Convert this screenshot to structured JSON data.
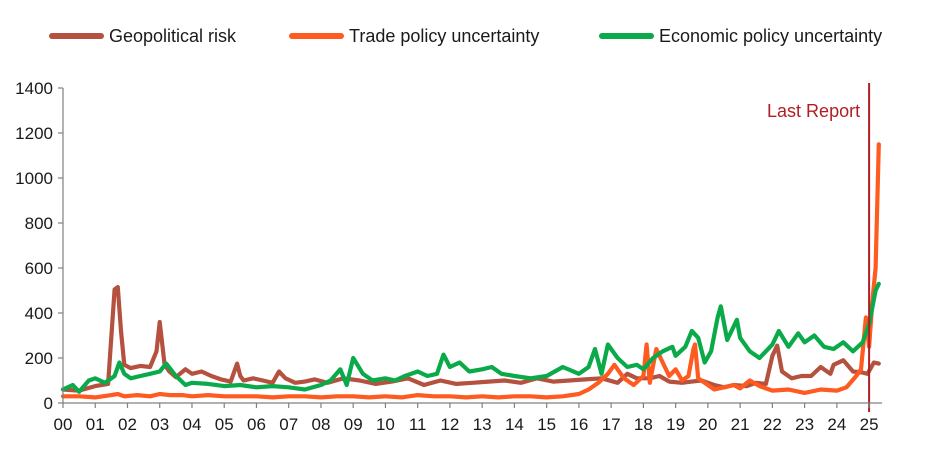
{
  "chart_data": {
    "type": "line",
    "x_tick_labels": [
      "00",
      "01",
      "02",
      "03",
      "04",
      "05",
      "06",
      "07",
      "08",
      "09",
      "10",
      "11",
      "12",
      "13",
      "14",
      "15",
      "16",
      "17",
      "18",
      "19",
      "20",
      "21",
      "22",
      "23",
      "24",
      "25"
    ],
    "y_tick_labels": [
      "0",
      "200",
      "400",
      "600",
      "800",
      "1000",
      "1200",
      "1400"
    ],
    "ylim": [
      0,
      1400
    ],
    "xlim": [
      2000.0,
      2025.4
    ],
    "grid": false,
    "legend_position": "top",
    "annotation": {
      "text": "Last Report",
      "x": 2025.0
    },
    "colors": {
      "geopolitical": "#b5513f",
      "trade": "#ff5a1f",
      "economic": "#0aaa4a",
      "annotation": "#b01e23",
      "axis": "#808080"
    },
    "series": [
      {
        "name": "Geopolitical risk",
        "key": "geopolitical",
        "x": [
          2000.0,
          2000.5,
          2001.0,
          2001.4,
          2001.6,
          2001.7,
          2001.8,
          2001.9,
          2002.1,
          2002.4,
          2002.7,
          2002.9,
          2003.0,
          2003.15,
          2003.3,
          2003.5,
          2003.8,
          2004.0,
          2004.3,
          2004.6,
          2004.9,
          2005.2,
          2005.4,
          2005.5,
          2005.6,
          2005.9,
          2006.2,
          2006.5,
          2006.7,
          2006.9,
          2007.2,
          2007.5,
          2007.8,
          2008.2,
          2008.7,
          2009.2,
          2009.7,
          2010.2,
          2010.7,
          2011.2,
          2011.7,
          2012.2,
          2012.7,
          2013.2,
          2013.7,
          2014.2,
          2014.7,
          2015.2,
          2015.7,
          2016.2,
          2016.7,
          2017.2,
          2017.5,
          2017.8,
          2018.2,
          2018.5,
          2018.8,
          2019.2,
          2019.5,
          2019.8,
          2020.2,
          2020.5,
          2020.8,
          2021.2,
          2021.5,
          2021.8,
          2022.0,
          2022.15,
          2022.3,
          2022.6,
          2022.9,
          2023.2,
          2023.5,
          2023.8,
          2023.9,
          2024.2,
          2024.5,
          2024.8,
          2024.95,
          2025.15,
          2025.3
        ],
        "values": [
          60,
          55,
          75,
          85,
          505,
          515,
          320,
          170,
          155,
          165,
          160,
          230,
          360,
          170,
          140,
          115,
          150,
          130,
          140,
          120,
          105,
          95,
          175,
          120,
          100,
          110,
          100,
          90,
          140,
          110,
          90,
          95,
          105,
          90,
          110,
          100,
          85,
          95,
          110,
          80,
          100,
          85,
          90,
          95,
          100,
          90,
          110,
          95,
          100,
          105,
          110,
          90,
          130,
          110,
          110,
          120,
          95,
          90,
          95,
          100,
          80,
          70,
          80,
          75,
          90,
          85,
          210,
          255,
          140,
          110,
          120,
          120,
          160,
          130,
          170,
          190,
          140,
          135,
          130,
          180,
          175
        ]
      },
      {
        "name": "Trade policy uncertainty",
        "key": "trade",
        "x": [
          2000.0,
          2000.5,
          2001.0,
          2001.5,
          2001.7,
          2001.9,
          2002.3,
          2002.7,
          2003.0,
          2003.3,
          2003.7,
          2004.0,
          2004.5,
          2005.0,
          2005.5,
          2006.0,
          2006.5,
          2007.0,
          2007.5,
          2008.0,
          2008.5,
          2009.0,
          2009.5,
          2010.0,
          2010.5,
          2011.0,
          2011.5,
          2012.0,
          2012.5,
          2013.0,
          2013.5,
          2014.0,
          2014.5,
          2015.0,
          2015.5,
          2016.0,
          2016.3,
          2016.6,
          2016.9,
          2017.1,
          2017.4,
          2017.7,
          2018.0,
          2018.1,
          2018.2,
          2018.4,
          2018.6,
          2018.8,
          2019.0,
          2019.2,
          2019.4,
          2019.55,
          2019.6,
          2019.7,
          2019.9,
          2020.2,
          2020.5,
          2020.8,
          2021.0,
          2021.3,
          2021.6,
          2022.0,
          2022.5,
          2023.0,
          2023.5,
          2024.0,
          2024.3,
          2024.6,
          2024.75,
          2024.9,
          2025.0,
          2025.1,
          2025.2,
          2025.3
        ],
        "values": [
          30,
          30,
          25,
          35,
          40,
          30,
          35,
          30,
          40,
          35,
          35,
          30,
          35,
          30,
          30,
          30,
          25,
          30,
          30,
          25,
          30,
          30,
          25,
          30,
          25,
          35,
          30,
          30,
          25,
          30,
          25,
          30,
          30,
          25,
          30,
          40,
          60,
          90,
          130,
          170,
          110,
          80,
          120,
          260,
          90,
          240,
          180,
          120,
          150,
          100,
          120,
          240,
          260,
          110,
          90,
          60,
          70,
          80,
          65,
          100,
          75,
          55,
          60,
          45,
          60,
          55,
          70,
          120,
          150,
          380,
          250,
          450,
          600,
          1150
        ]
      },
      {
        "name": "Economic policy uncertainty",
        "key": "economic",
        "x": [
          2000.0,
          2000.3,
          2000.5,
          2000.8,
          2001.0,
          2001.3,
          2001.6,
          2001.75,
          2001.9,
          2002.1,
          2002.4,
          2002.7,
          2003.0,
          2003.2,
          2003.5,
          2003.8,
          2004.0,
          2004.5,
          2005.0,
          2005.5,
          2006.0,
          2006.5,
          2007.0,
          2007.5,
          2008.0,
          2008.3,
          2008.6,
          2008.8,
          2009.0,
          2009.3,
          2009.6,
          2010.0,
          2010.3,
          2010.6,
          2011.0,
          2011.3,
          2011.6,
          2011.8,
          2012.0,
          2012.3,
          2012.6,
          2013.0,
          2013.3,
          2013.6,
          2014.0,
          2014.5,
          2015.0,
          2015.5,
          2016.0,
          2016.3,
          2016.5,
          2016.7,
          2016.9,
          2017.2,
          2017.5,
          2017.8,
          2018.0,
          2018.3,
          2018.6,
          2018.9,
          2019.0,
          2019.3,
          2019.5,
          2019.7,
          2019.9,
          2020.1,
          2020.3,
          2020.4,
          2020.6,
          2020.9,
          2021.0,
          2021.3,
          2021.6,
          2022.0,
          2022.2,
          2022.5,
          2022.8,
          2023.0,
          2023.3,
          2023.6,
          2023.9,
          2024.2,
          2024.5,
          2024.8,
          2025.0,
          2025.2,
          2025.3
        ],
        "values": [
          60,
          80,
          50,
          100,
          110,
          90,
          120,
          180,
          130,
          110,
          120,
          130,
          140,
          175,
          120,
          80,
          90,
          85,
          75,
          80,
          70,
          75,
          70,
          60,
          80,
          100,
          150,
          80,
          200,
          130,
          100,
          110,
          100,
          120,
          140,
          120,
          130,
          215,
          160,
          180,
          140,
          150,
          160,
          130,
          120,
          110,
          120,
          160,
          130,
          160,
          240,
          130,
          260,
          200,
          160,
          170,
          150,
          200,
          230,
          250,
          210,
          250,
          320,
          290,
          180,
          230,
          380,
          430,
          280,
          370,
          290,
          230,
          200,
          260,
          320,
          250,
          310,
          270,
          300,
          250,
          240,
          270,
          230,
          270,
          350,
          500,
          530
        ]
      }
    ]
  }
}
